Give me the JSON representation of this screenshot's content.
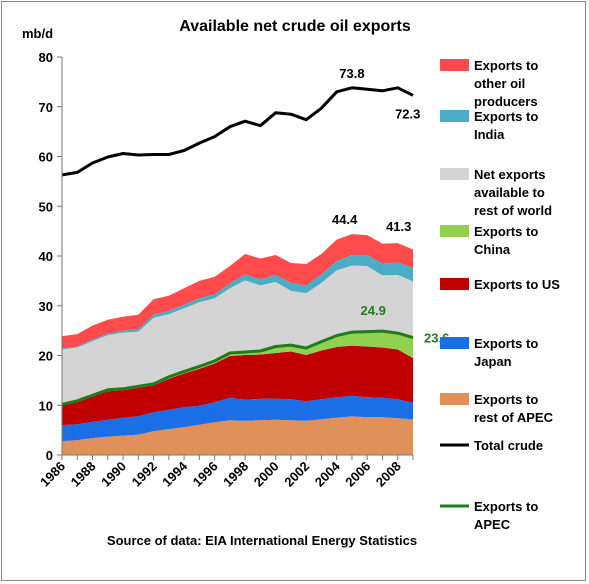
{
  "chart_data": {
    "type": "area",
    "title": "Available net crude oil exports",
    "ylabel": "mb/d",
    "xlabel": "",
    "source": "Source of data: EIA International Energy Statistics",
    "ylim": [
      0,
      80
    ],
    "yticks": [
      0,
      10,
      20,
      30,
      40,
      50,
      60,
      70,
      80
    ],
    "x": [
      1986,
      1987,
      1988,
      1989,
      1990,
      1991,
      1992,
      1993,
      1994,
      1995,
      1996,
      1997,
      1998,
      1999,
      2000,
      2001,
      2002,
      2003,
      2004,
      2005,
      2006,
      2007,
      2008,
      2009
    ],
    "xticks": [
      1986,
      1988,
      1990,
      1992,
      1994,
      1996,
      1998,
      2000,
      2002,
      2004,
      2006,
      2008
    ],
    "stacked_series": [
      {
        "name": "Exports to rest of APEC",
        "color": "#e0915a",
        "values": [
          2.8,
          3.0,
          3.4,
          3.7,
          3.9,
          4.1,
          4.8,
          5.2,
          5.6,
          6.1,
          6.6,
          7.0,
          6.9,
          7.0,
          7.1,
          7.0,
          6.9,
          7.2,
          7.5,
          7.8,
          7.6,
          7.6,
          7.4,
          7.2
        ]
      },
      {
        "name": "Exports to Japan",
        "color": "#1a6fe6",
        "values": [
          3.2,
          3.2,
          3.3,
          3.4,
          3.6,
          3.7,
          3.8,
          3.9,
          4.0,
          3.8,
          4.0,
          4.5,
          4.2,
          4.3,
          4.2,
          4.2,
          3.9,
          4.0,
          4.1,
          4.1,
          4.0,
          3.9,
          3.8,
          3.3
        ]
      },
      {
        "name": "Exports to US",
        "color": "#c00000",
        "values": [
          4.0,
          4.4,
          5.0,
          5.7,
          5.5,
          5.7,
          5.4,
          6.2,
          6.8,
          7.4,
          7.8,
          8.4,
          9.0,
          8.9,
          9.2,
          9.6,
          9.3,
          9.8,
          10.1,
          10.1,
          10.2,
          10.1,
          10.0,
          9.0
        ]
      },
      {
        "name": "Exports to China",
        "color": "#92d050",
        "values": [
          0.2,
          0.3,
          0.3,
          0.3,
          0.3,
          0.3,
          0.3,
          0.4,
          0.4,
          0.5,
          0.5,
          0.6,
          0.6,
          0.7,
          1.3,
          1.3,
          1.4,
          1.8,
          2.3,
          2.7,
          3.0,
          3.3,
          3.3,
          4.1
        ]
      },
      {
        "name": "Net exports available to rest of world",
        "color": "#d4d4d4",
        "values": [
          11.0,
          10.7,
          10.9,
          11.0,
          11.3,
          11.0,
          13.3,
          12.6,
          12.7,
          12.9,
          12.6,
          13.0,
          14.4,
          13.2,
          13.0,
          10.9,
          11.0,
          11.8,
          13.1,
          13.4,
          13.2,
          11.2,
          11.7,
          11.3
        ]
      },
      {
        "name": "Exports to India",
        "color": "#4bacc6",
        "values": [
          0.2,
          0.2,
          0.3,
          0.3,
          0.4,
          0.5,
          0.6,
          0.7,
          0.7,
          0.8,
          0.8,
          1.0,
          1.2,
          1.2,
          1.4,
          1.6,
          1.6,
          1.7,
          1.9,
          2.1,
          2.2,
          2.4,
          2.5,
          2.7
        ]
      },
      {
        "name": "Exports to other oil producers",
        "color": "#ff4b4b",
        "values": [
          2.5,
          2.5,
          2.8,
          2.8,
          2.8,
          2.9,
          3.1,
          3.0,
          3.3,
          3.5,
          3.5,
          3.5,
          4.1,
          4.2,
          4.0,
          4.0,
          4.3,
          4.1,
          4.3,
          4.2,
          4.0,
          4.0,
          3.9,
          3.7
        ]
      }
    ],
    "line_series": [
      {
        "name": "Total crude",
        "color": "#000000",
        "values": [
          56.3,
          56.8,
          58.7,
          59.9,
          60.6,
          60.3,
          60.4,
          60.4,
          61.2,
          62.7,
          64.0,
          66.0,
          67.1,
          66.2,
          68.8,
          68.5,
          67.4,
          69.7,
          73.0,
          73.8,
          73.5,
          73.2,
          73.8,
          72.3
        ]
      },
      {
        "name": "Exports to APEC",
        "color": "#1e7b1e",
        "values": [
          10.2,
          10.9,
          12.0,
          13.1,
          13.3,
          13.8,
          14.3,
          15.7,
          16.8,
          17.8,
          18.9,
          20.5,
          20.7,
          20.9,
          21.8,
          22.1,
          21.5,
          22.8,
          24.0,
          24.7,
          24.8,
          24.9,
          24.5,
          23.6
        ]
      }
    ],
    "annotations": [
      {
        "text": "73.8",
        "color": "#000000"
      },
      {
        "text": "72.3",
        "color": "#000000"
      },
      {
        "text": "44.4",
        "color": "#000000"
      },
      {
        "text": "41.3",
        "color": "#000000"
      },
      {
        "text": "24.9",
        "color": "#1e7b1e"
      },
      {
        "text": "23.6",
        "color": "#1e7b1e"
      }
    ],
    "legend": {
      "placement": "right",
      "entries": [
        {
          "label_lines": [
            "Exports to",
            "other oil",
            "producers"
          ],
          "color": "#ff4b4b",
          "kind": "area"
        },
        {
          "label_lines": [
            "Exports to",
            "India"
          ],
          "color": "#4bacc6",
          "kind": "area"
        },
        {
          "label_lines": [
            "Net exports",
            "available to",
            "rest of world"
          ],
          "color": "#d4d4d4",
          "kind": "area"
        },
        {
          "label_lines": [
            "Exports to",
            "China"
          ],
          "color": "#92d050",
          "kind": "area"
        },
        {
          "label_lines": [
            "Exports to US"
          ],
          "color": "#c00000",
          "kind": "area"
        },
        {
          "label_lines": [
            "Exports to",
            "Japan"
          ],
          "color": "#1a6fe6",
          "kind": "area"
        },
        {
          "label_lines": [
            "Exports to",
            "rest of APEC"
          ],
          "color": "#e0915a",
          "kind": "area"
        },
        {
          "label_lines": [
            "Total crude"
          ],
          "color": "#000000",
          "kind": "line"
        },
        {
          "label_lines": [
            "Exports to",
            "APEC"
          ],
          "color": "#1e7b1e",
          "kind": "line"
        }
      ]
    },
    "grid": false
  }
}
